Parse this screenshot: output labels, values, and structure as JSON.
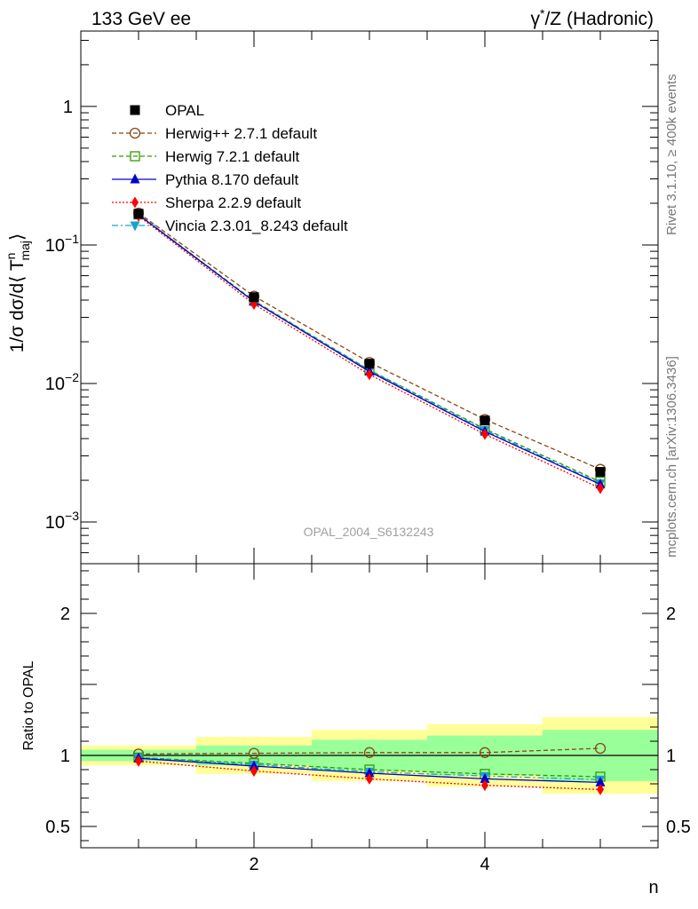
{
  "header": {
    "left_title": "133 GeV ee",
    "right_title_base": "γ",
    "right_title_sup": "*",
    "right_title_rest": "/Z (Hadronic)"
  },
  "side_notes": {
    "rivet": "Rivet 3.1.10, ≥ 400k events",
    "mcplots": "mcplots.cern.ch [arXiv:1306.3436]"
  },
  "watermark": "OPAL_2004_S6132243",
  "colors": {
    "opal": "#000000",
    "herwigpp": "#8b4513",
    "herwig7": "#339900",
    "pythia": "#0000cc",
    "sherpa": "#ff0000",
    "vincia": "#1aa3c8",
    "band_inner": "#99ff99",
    "band_outer": "#ffff99"
  },
  "chart_data": [
    {
      "type": "line",
      "yscale": "log",
      "title": "",
      "xlabel": "",
      "ylabel": {
        "prefix": "1/σ dσ/d⟨ T",
        "sup": "n",
        "sub": "maj",
        "suffix": "⟩"
      },
      "xlim": [
        0.5,
        5.5
      ],
      "ylim": [
        0.0005,
        3.5
      ],
      "yticks": [
        {
          "value": 1,
          "label": "1",
          "exp": ""
        },
        {
          "value": 0.1,
          "label": "10",
          "exp": "−1"
        },
        {
          "value": 0.01,
          "label": "10",
          "exp": "−2"
        },
        {
          "value": 0.001,
          "label": "10",
          "exp": "−3"
        }
      ],
      "x": [
        1,
        2,
        3,
        4,
        5
      ],
      "series": [
        {
          "key": "opal",
          "name": "OPAL",
          "style": "data",
          "marker": "filled-square",
          "values": [
            0.168,
            0.042,
            0.0139,
            0.0054,
            0.0023
          ]
        },
        {
          "key": "herwigpp",
          "name": "Herwig++ 2.7.1 default",
          "style": "dashed",
          "marker": "open-circle",
          "values": [
            0.17,
            0.0427,
            0.0142,
            0.0055,
            0.0024
          ]
        },
        {
          "key": "herwig7",
          "name": "Herwig 7.2.1 default",
          "style": "dashed",
          "marker": "open-square",
          "values": [
            0.166,
            0.0396,
            0.0125,
            0.0047,
            0.00195
          ]
        },
        {
          "key": "pythia",
          "name": "Pythia 8.170 default",
          "style": "solid",
          "marker": "filled-triangle-up",
          "values": [
            0.165,
            0.039,
            0.0122,
            0.0045,
            0.00187
          ]
        },
        {
          "key": "sherpa",
          "name": "Sherpa 2.2.9 default",
          "style": "dotted",
          "marker": "filled-diamond",
          "values": [
            0.162,
            0.0374,
            0.0116,
            0.0043,
            0.00175
          ]
        },
        {
          "key": "vincia",
          "name": "Vincia 2.3.01_8.243 default",
          "style": "dashdot",
          "marker": "filled-triangle-down",
          "values": [
            0.166,
            0.0392,
            0.0124,
            0.0046,
            0.0019
          ]
        }
      ],
      "legend_position": "top-left"
    },
    {
      "type": "line",
      "yscale": "linear",
      "title": "",
      "xlabel": "n",
      "ylabel": "Ratio to OPAL",
      "xlim": [
        0.5,
        5.5
      ],
      "ylim": [
        0.35,
        2.35
      ],
      "xticks": [
        2,
        4
      ],
      "yticks": [
        0.5,
        1,
        2
      ],
      "reference_line": 1,
      "bands": [
        {
          "x_low": 0.5,
          "x_high": 1.5,
          "outer": [
            0.93,
            1.07
          ],
          "inner": [
            0.96,
            1.04
          ]
        },
        {
          "x_low": 1.5,
          "x_high": 2.5,
          "outer": [
            0.87,
            1.13
          ],
          "inner": [
            0.93,
            1.07
          ]
        },
        {
          "x_low": 2.5,
          "x_high": 3.5,
          "outer": [
            0.82,
            1.18
          ],
          "inner": [
            0.89,
            1.11
          ]
        },
        {
          "x_low": 3.5,
          "x_high": 4.5,
          "outer": [
            0.78,
            1.22
          ],
          "inner": [
            0.86,
            1.14
          ]
        },
        {
          "x_low": 4.5,
          "x_high": 5.5,
          "outer": [
            0.73,
            1.27
          ],
          "inner": [
            0.82,
            1.18
          ]
        }
      ],
      "x": [
        1,
        2,
        3,
        4,
        5
      ],
      "series": [
        {
          "key": "herwigpp",
          "name": "Herwig++ 2.7.1 default",
          "style": "dashed",
          "marker": "open-circle",
          "values": [
            1.01,
            1.015,
            1.02,
            1.02,
            1.05
          ]
        },
        {
          "key": "herwig7",
          "name": "Herwig 7.2.1 default",
          "style": "dashed",
          "marker": "open-square",
          "values": [
            0.985,
            0.945,
            0.9,
            0.87,
            0.85
          ]
        },
        {
          "key": "vincia",
          "name": "Vincia 2.3.01_8.243 default",
          "style": "dashdot",
          "marker": "filled-triangle-down",
          "values": [
            0.985,
            0.935,
            0.885,
            0.855,
            0.83
          ]
        },
        {
          "key": "pythia",
          "name": "Pythia 8.170 default",
          "style": "solid",
          "marker": "filled-triangle-up",
          "values": [
            0.98,
            0.925,
            0.875,
            0.835,
            0.81
          ]
        },
        {
          "key": "sherpa",
          "name": "Sherpa 2.2.9 default",
          "style": "dotted",
          "marker": "filled-diamond",
          "values": [
            0.96,
            0.89,
            0.835,
            0.79,
            0.76
          ]
        }
      ]
    }
  ]
}
